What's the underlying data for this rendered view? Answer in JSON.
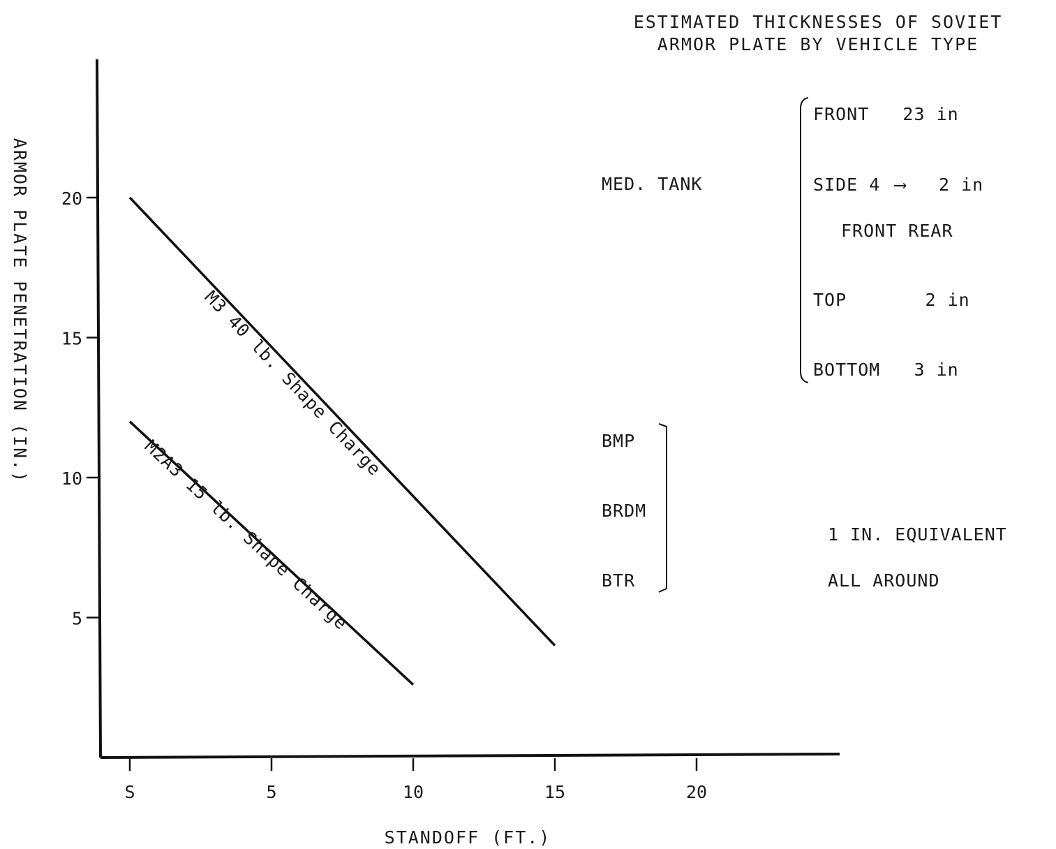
{
  "chart_data": {
    "type": "line",
    "xlabel": "STANDOFF (FT.)",
    "ylabel": "ARMOR PLATE PENETRATION (IN.)",
    "x_ticks": [
      0,
      5,
      10,
      15,
      20
    ],
    "x_tick_labels": [
      "S",
      "5",
      "10",
      "15",
      "20"
    ],
    "y_ticks": [
      5,
      10,
      15,
      20
    ],
    "y_tick_labels": [
      "5",
      "10",
      "15",
      "20"
    ],
    "xlim": [
      -1,
      25
    ],
    "ylim": [
      0,
      25
    ],
    "grid": false,
    "series": [
      {
        "name": "M3 40 lb. Shape Charge",
        "x": [
          0,
          15
        ],
        "y": [
          20,
          4
        ]
      },
      {
        "name": "M2A3 15 lb. Shape Charge",
        "x": [
          0,
          10
        ],
        "y": [
          12,
          2.6
        ]
      }
    ]
  },
  "armor_table": {
    "title_line1": "ESTIMATED THICKNESSES OF SOVIET",
    "title_line2": "ARMOR PLATE BY VEHICLE TYPE",
    "med_tank": {
      "label": "MED. TANK",
      "front": "FRONT   23 in",
      "side_prefix": "SIDE 4",
      "side_arrow": "⟶",
      "side_suffix": "2 in",
      "side_note": "FRONT REAR",
      "top": "TOP       2 in",
      "bottom": "BOTTOM   3 in"
    },
    "light_vehicles": {
      "items": [
        "BMP",
        "BRDM",
        "BTR"
      ],
      "note_line1": "1 IN. EQUIVALENT",
      "note_line2": "ALL AROUND"
    }
  }
}
